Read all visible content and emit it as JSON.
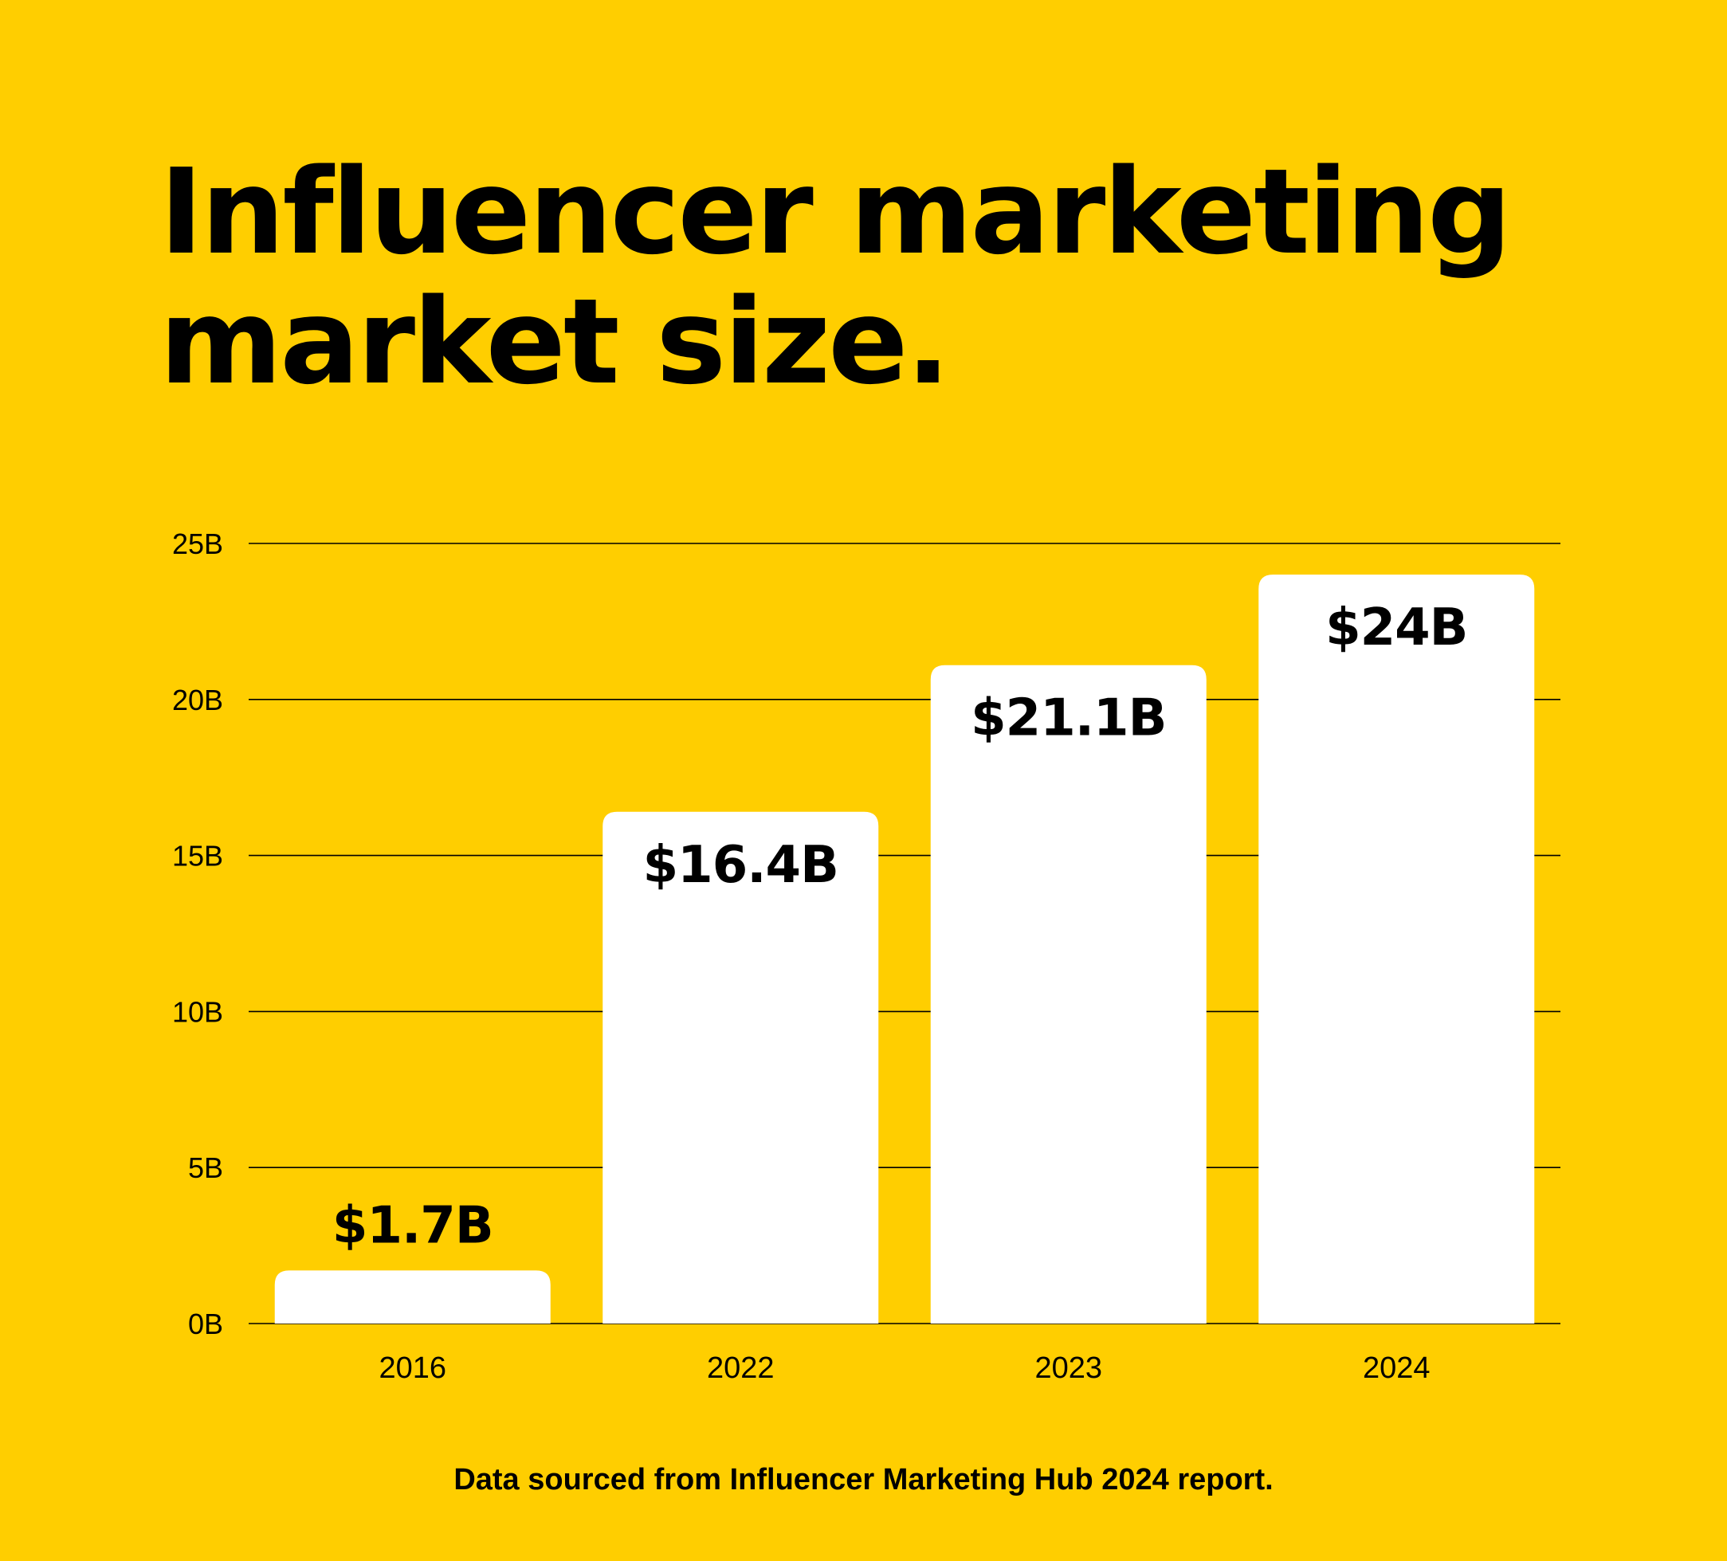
{
  "colors": {
    "background": "#FFCE00",
    "bar": "#FFFFFF",
    "text": "#000000"
  },
  "title_lines": [
    "Influencer marketing",
    "market size."
  ],
  "source_note": "Data sourced from Influencer Marketing Hub 2024 report.",
  "chart_data": {
    "type": "bar",
    "title": "Influencer marketing market size.",
    "categories": [
      "2016",
      "2022",
      "2023",
      "2024"
    ],
    "values": [
      1.7,
      16.4,
      21.1,
      24
    ],
    "data_labels": [
      "$1.7B",
      "$16.4B",
      "$21.1B",
      "$24B"
    ],
    "yticks": [
      "0B",
      "5B",
      "10B",
      "15B",
      "20B",
      "25B"
    ],
    "ytick_values": [
      0,
      5,
      10,
      15,
      20,
      25
    ],
    "ylim": [
      0,
      25
    ],
    "unit": "B",
    "grid": true
  }
}
